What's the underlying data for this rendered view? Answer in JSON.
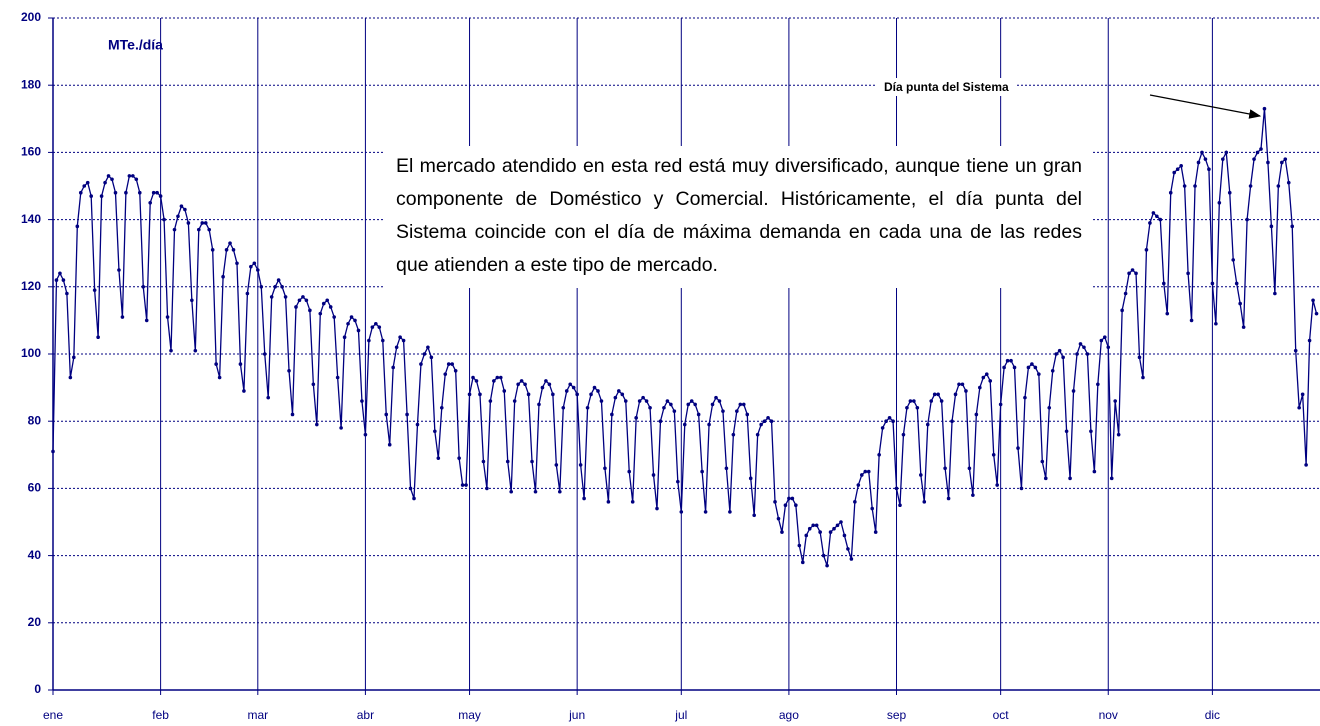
{
  "chart_data": {
    "type": "line",
    "y_label": "MTe./día",
    "annotation": "Día punta del Sistema",
    "note": "El mercado atendido en esta red está muy diversificado, aunque tiene un gran componente de Doméstico y Comercial. Históricamente, el día punta del Sistema coincide con el día de máxima demanda en cada una de las redes que atienden a este tipo de mercado.",
    "x": [
      1,
      2,
      3,
      4,
      5,
      6,
      7,
      8,
      9,
      10,
      11,
      12,
      13,
      14,
      15,
      16,
      17,
      18,
      19,
      20,
      21,
      22,
      23,
      24,
      25,
      26,
      27,
      28,
      29,
      30,
      31,
      32,
      33,
      34,
      35,
      36,
      37,
      38,
      39,
      40,
      41,
      42,
      43,
      44,
      45,
      46,
      47,
      48,
      49,
      50,
      51,
      52,
      53,
      54,
      55,
      56,
      57,
      58,
      59,
      60,
      61,
      62,
      63,
      64,
      65,
      66,
      67,
      68,
      69,
      70,
      71,
      72,
      73,
      74,
      75,
      76,
      77,
      78,
      79,
      80,
      81,
      82,
      83,
      84,
      85,
      86,
      87,
      88,
      89,
      90,
      91,
      92,
      93,
      94,
      95,
      96,
      97,
      98,
      99,
      100,
      101,
      102,
      103,
      104,
      105,
      106,
      107,
      108,
      109,
      110,
      111,
      112,
      113,
      114,
      115,
      116,
      117,
      118,
      119,
      120,
      121,
      122,
      123,
      124,
      125,
      126,
      127,
      128,
      129,
      130,
      131,
      132,
      133,
      134,
      135,
      136,
      137,
      138,
      139,
      140,
      141,
      142,
      143,
      144,
      145,
      146,
      147,
      148,
      149,
      150,
      151,
      152,
      153,
      154,
      155,
      156,
      157,
      158,
      159,
      160,
      161,
      162,
      163,
      164,
      165,
      166,
      167,
      168,
      169,
      170,
      171,
      172,
      173,
      174,
      175,
      176,
      177,
      178,
      179,
      180,
      181,
      182,
      183,
      184,
      185,
      186,
      187,
      188,
      189,
      190,
      191,
      192,
      193,
      194,
      195,
      196,
      197,
      198,
      199,
      200,
      201,
      202,
      203,
      204,
      205,
      206,
      207,
      208,
      209,
      210,
      211,
      212,
      213,
      214,
      215,
      216,
      217,
      218,
      219,
      220,
      221,
      222,
      223,
      224,
      225,
      226,
      227,
      228,
      229,
      230,
      231,
      232,
      233,
      234,
      235,
      236,
      237,
      238,
      239,
      240,
      241,
      242,
      243,
      244,
      245,
      246,
      247,
      248,
      249,
      250,
      251,
      252,
      253,
      254,
      255,
      256,
      257,
      258,
      259,
      260,
      261,
      262,
      263,
      264,
      265,
      266,
      267,
      268,
      269,
      270,
      271,
      272,
      273,
      274,
      275,
      276,
      277,
      278,
      279,
      280,
      281,
      282,
      283,
      284,
      285,
      286,
      287,
      288,
      289,
      290,
      291,
      292,
      293,
      294,
      295,
      296,
      297,
      298,
      299,
      300,
      301,
      302,
      303,
      304,
      305,
      306,
      307,
      308,
      309,
      310,
      311,
      312,
      313,
      314,
      315,
      316,
      317,
      318,
      319,
      320,
      321,
      322,
      323,
      324,
      325,
      326,
      327,
      328,
      329,
      330,
      331,
      332,
      333,
      334,
      335,
      336,
      337,
      338,
      339,
      340,
      341,
      342,
      343,
      344,
      345,
      346,
      347,
      348,
      349,
      350,
      351,
      352,
      353,
      354,
      355,
      356,
      357,
      358,
      359,
      360,
      361,
      362,
      363,
      364,
      365
    ],
    "series": [
      {
        "color": "#000080",
        "values": [
          71,
          122,
          124,
          122,
          118,
          93,
          99,
          138,
          148,
          150,
          151,
          147,
          119,
          105,
          147,
          151,
          153,
          152,
          148,
          125,
          111,
          148,
          153,
          153,
          152,
          148,
          120,
          110,
          145,
          148,
          148,
          147,
          140,
          111,
          101,
          137,
          141,
          144,
          143,
          139,
          116,
          101,
          137,
          139,
          139,
          137,
          131,
          97,
          93,
          123,
          131,
          133,
          131,
          127,
          97,
          89,
          118,
          126,
          127,
          125,
          120,
          100,
          87,
          117,
          120,
          122,
          120,
          117,
          95,
          82,
          114,
          116,
          117,
          116,
          113,
          91,
          79,
          112,
          115,
          116,
          114,
          111,
          93,
          78,
          105,
          109,
          111,
          110,
          107,
          86,
          76,
          104,
          108,
          109,
          108,
          104,
          82,
          73,
          96,
          102,
          105,
          104,
          82,
          60,
          57,
          79,
          97,
          100,
          102,
          99,
          77,
          69,
          84,
          94,
          97,
          97,
          95,
          69,
          61,
          61,
          88,
          93,
          92,
          88,
          68,
          60,
          86,
          92,
          93,
          93,
          89,
          68,
          59,
          86,
          91,
          92,
          91,
          88,
          68,
          59,
          85,
          90,
          92,
          91,
          88,
          67,
          59,
          84,
          89,
          91,
          90,
          88,
          67,
          57,
          84,
          88,
          90,
          89,
          86,
          66,
          56,
          82,
          87,
          89,
          88,
          86,
          65,
          56,
          81,
          86,
          87,
          86,
          84,
          64,
          54,
          80,
          84,
          86,
          85,
          83,
          62,
          53,
          79,
          85,
          86,
          85,
          82,
          65,
          53,
          79,
          85,
          87,
          86,
          83,
          66,
          53,
          76,
          83,
          85,
          85,
          82,
          63,
          52,
          76,
          79,
          80,
          81,
          80,
          56,
          51,
          47,
          55,
          57,
          57,
          55,
          43,
          38,
          46,
          48,
          49,
          49,
          47,
          40,
          37,
          47,
          48,
          49,
          50,
          46,
          42,
          39,
          56,
          61,
          64,
          65,
          65,
          54,
          47,
          70,
          78,
          80,
          81,
          80,
          60,
          55,
          76,
          84,
          86,
          86,
          84,
          64,
          56,
          79,
          86,
          88,
          88,
          86,
          66,
          57,
          80,
          88,
          91,
          91,
          89,
          66,
          58,
          82,
          90,
          93,
          94,
          92,
          70,
          61,
          85,
          96,
          98,
          98,
          96,
          72,
          60,
          87,
          96,
          97,
          96,
          94,
          68,
          63,
          84,
          95,
          100,
          101,
          99,
          77,
          63,
          89,
          100,
          103,
          102,
          100,
          77,
          65,
          91,
          104,
          105,
          102,
          63,
          86,
          76,
          113,
          118,
          124,
          125,
          124,
          99,
          93,
          131,
          139,
          142,
          141,
          140,
          121,
          112,
          148,
          154,
          155,
          156,
          150,
          124,
          110,
          150,
          157,
          160,
          158,
          155,
          121,
          109,
          145,
          158,
          160,
          148,
          128,
          121,
          115,
          108,
          140,
          150,
          158,
          160,
          161,
          173,
          157,
          138,
          118,
          150,
          157,
          158,
          151,
          138,
          101,
          84,
          88,
          67,
          104,
          116,
          112
        ]
      }
    ],
    "xlim": [
      1,
      366
    ],
    "xticks": [
      {
        "value": 1,
        "label": "ene"
      },
      {
        "value": 32,
        "label": "feb"
      },
      {
        "value": 60,
        "label": "mar"
      },
      {
        "value": 91,
        "label": "abr"
      },
      {
        "value": 121,
        "label": "may"
      },
      {
        "value": 152,
        "label": "jun"
      },
      {
        "value": 182,
        "label": "jul"
      },
      {
        "value": 213,
        "label": "ago"
      },
      {
        "value": 244,
        "label": "sep"
      },
      {
        "value": 274,
        "label": "oct"
      },
      {
        "value": 305,
        "label": "nov"
      },
      {
        "value": 335,
        "label": "dic"
      }
    ],
    "ylim": [
      0,
      200
    ],
    "yticks": [
      0,
      20,
      40,
      60,
      80,
      100,
      120,
      140,
      160,
      180,
      200
    ],
    "grid": true
  }
}
